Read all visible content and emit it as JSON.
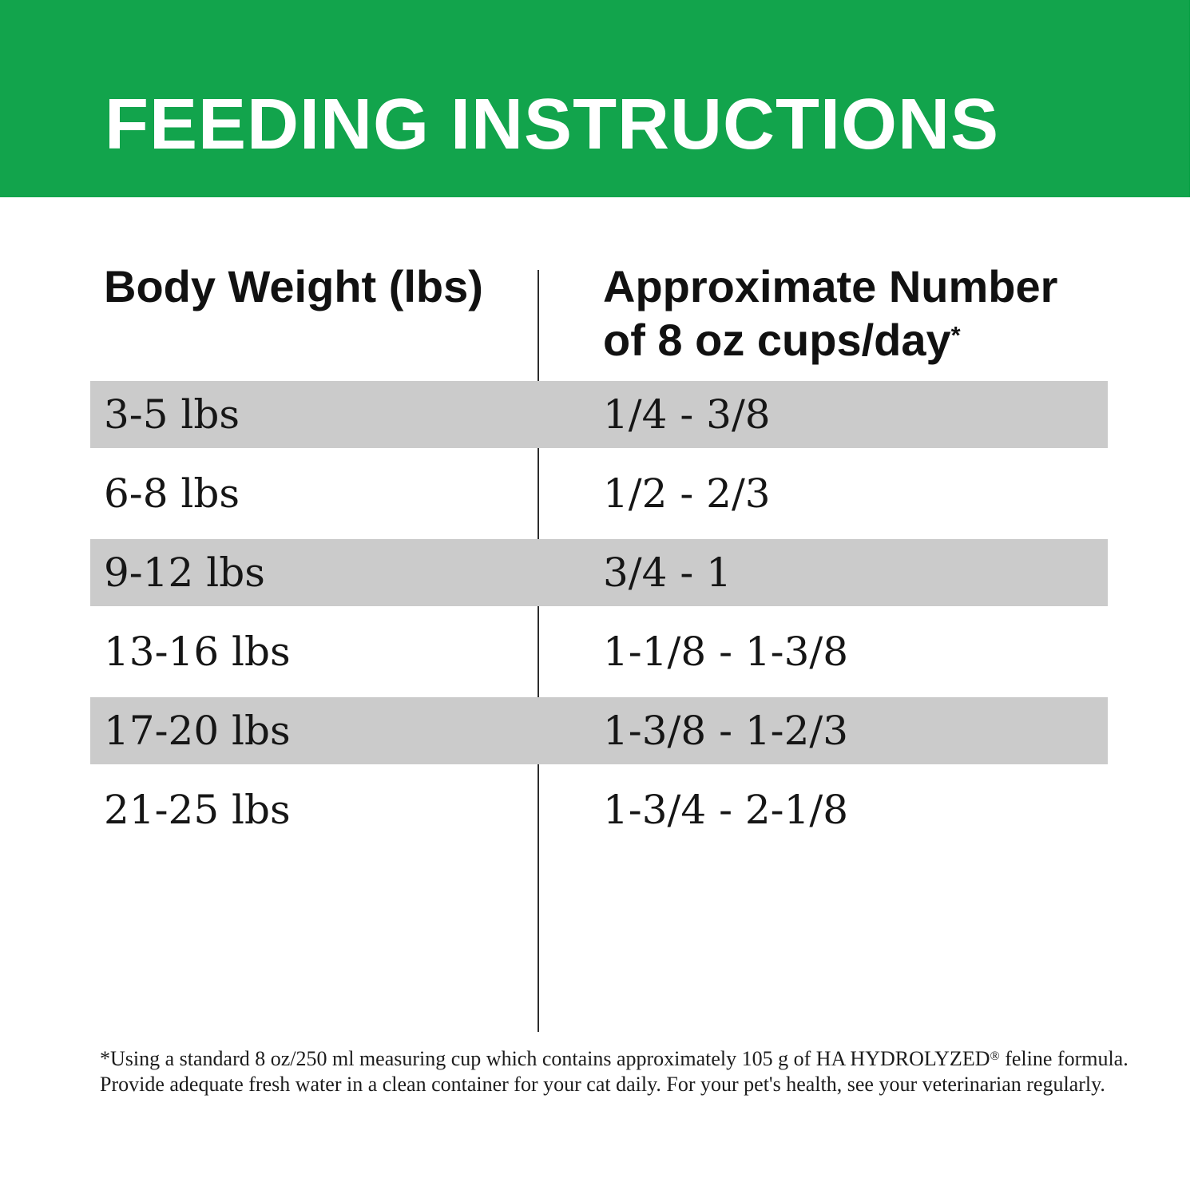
{
  "banner": {
    "title": "FEEDING INSTRUCTIONS",
    "bg_color": "#12a44c",
    "text_color": "#ffffff"
  },
  "table": {
    "columns": {
      "body_weight": {
        "label": "Body Weight (lbs)"
      },
      "cups": {
        "label_line1": "Approximate Number",
        "label_line2": "of 8 oz cups/day",
        "footnote_marker": "*"
      }
    },
    "shaded_row_color": "#cbcbcb",
    "rows": [
      {
        "weight": "3-5 lbs",
        "cups": "1/4 - 3/8",
        "shaded": true
      },
      {
        "weight": "6-8 lbs",
        "cups": "1/2 - 2/3",
        "shaded": false
      },
      {
        "weight": "9-12 lbs",
        "cups": "3/4 - 1",
        "shaded": true
      },
      {
        "weight": "13-16 lbs",
        "cups": "1-1/8 - 1-3/8",
        "shaded": false
      },
      {
        "weight": "17-20 lbs",
        "cups": "1-3/8 - 1-2/3",
        "shaded": true
      },
      {
        "weight": "21-25 lbs",
        "cups": "1-3/4 - 2-1/8",
        "shaded": false
      }
    ]
  },
  "footnote": {
    "line1_before_reg": "*Using a standard 8 oz/250 ml measuring cup which contains approximately 105 g of HA HYDROLYZED",
    "line1_reg": "®",
    "line1_after_reg": " feline formula.",
    "line2": "Provide adequate fresh water in a clean container for your cat daily. For your pet's health, see your veterinarian regularly."
  }
}
